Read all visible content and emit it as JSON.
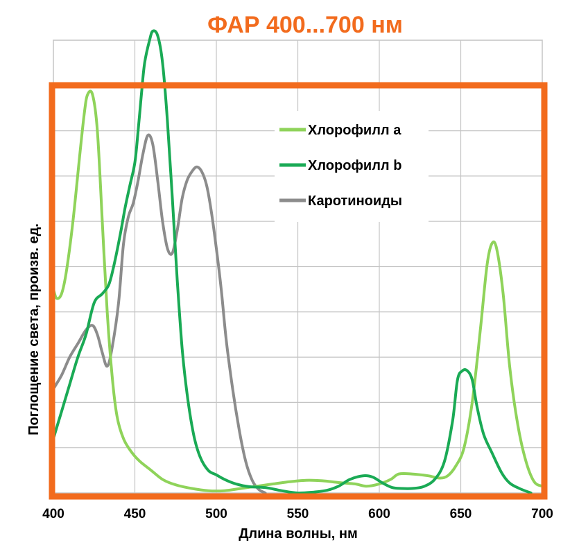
{
  "chart_data": {
    "type": "line",
    "title": "ФАР 400...700 нм",
    "xlabel": "Длина волны, нм",
    "ylabel": "Поглощение света, произв. ед.",
    "xlim": [
      400,
      700
    ],
    "ylim": [
      0,
      10
    ],
    "x_ticks": [
      "400",
      "450",
      "500",
      "550",
      "600",
      "650",
      "700"
    ],
    "grid": true,
    "legend_position": "top-center",
    "highlight_box_color": "#f26b1d",
    "title_color": "#f26b1d",
    "series": [
      {
        "name": "Хлорофилл а",
        "color": "#8fd35a",
        "points": [
          [
            400,
            4.5
          ],
          [
            402,
            4.3
          ],
          [
            405,
            4.4
          ],
          [
            408,
            4.9
          ],
          [
            412,
            6.0
          ],
          [
            416,
            7.4
          ],
          [
            419,
            8.4
          ],
          [
            421,
            8.8
          ],
          [
            424,
            8.8
          ],
          [
            427,
            8.0
          ],
          [
            430,
            6.0
          ],
          [
            433,
            4.0
          ],
          [
            436,
            2.6
          ],
          [
            439,
            1.7
          ],
          [
            443,
            1.2
          ],
          [
            448,
            0.9
          ],
          [
            453,
            0.7
          ],
          [
            460,
            0.5
          ],
          [
            467,
            0.3
          ],
          [
            475,
            0.18
          ],
          [
            485,
            0.1
          ],
          [
            495,
            0.05
          ],
          [
            505,
            0.05
          ],
          [
            515,
            0.1
          ],
          [
            525,
            0.15
          ],
          [
            535,
            0.2
          ],
          [
            545,
            0.25
          ],
          [
            555,
            0.28
          ],
          [
            565,
            0.27
          ],
          [
            575,
            0.23
          ],
          [
            585,
            0.2
          ],
          [
            592,
            0.15
          ],
          [
            600,
            0.2
          ],
          [
            607,
            0.3
          ],
          [
            612,
            0.42
          ],
          [
            620,
            0.42
          ],
          [
            630,
            0.38
          ],
          [
            637,
            0.33
          ],
          [
            642,
            0.38
          ],
          [
            647,
            0.6
          ],
          [
            652,
            1.0
          ],
          [
            657,
            2.0
          ],
          [
            662,
            3.6
          ],
          [
            666,
            5.0
          ],
          [
            669,
            5.5
          ],
          [
            672,
            5.4
          ],
          [
            676,
            4.4
          ],
          [
            680,
            2.8
          ],
          [
            685,
            1.5
          ],
          [
            690,
            0.7
          ],
          [
            695,
            0.25
          ],
          [
            700,
            0.15
          ]
        ]
      },
      {
        "name": "Хлорофилл b",
        "color": "#1aaa55",
        "points": [
          [
            400,
            1.2
          ],
          [
            405,
            1.8
          ],
          [
            410,
            2.4
          ],
          [
            415,
            3.0
          ],
          [
            420,
            3.5
          ],
          [
            425,
            4.2
          ],
          [
            430,
            4.4
          ],
          [
            434,
            4.6
          ],
          [
            437,
            5.0
          ],
          [
            441,
            5.7
          ],
          [
            444,
            6.3
          ],
          [
            447,
            6.8
          ],
          [
            450,
            7.3
          ],
          [
            452,
            8.0
          ],
          [
            454,
            8.8
          ],
          [
            456,
            9.5
          ],
          [
            459,
            10.0
          ],
          [
            461,
            10.2
          ],
          [
            464,
            10.1
          ],
          [
            467,
            9.5
          ],
          [
            470,
            8.2
          ],
          [
            473,
            6.5
          ],
          [
            476,
            4.7
          ],
          [
            479,
            3.2
          ],
          [
            482,
            2.2
          ],
          [
            486,
            1.3
          ],
          [
            490,
            0.8
          ],
          [
            495,
            0.5
          ],
          [
            500,
            0.4
          ],
          [
            505,
            0.3
          ],
          [
            512,
            0.2
          ],
          [
            520,
            0.14
          ],
          [
            530,
            0.12
          ],
          [
            540,
            0.05
          ],
          [
            550,
            0.0
          ],
          [
            560,
            0.02
          ],
          [
            568,
            0.06
          ],
          [
            575,
            0.15
          ],
          [
            582,
            0.3
          ],
          [
            590,
            0.38
          ],
          [
            596,
            0.35
          ],
          [
            602,
            0.22
          ],
          [
            608,
            0.12
          ],
          [
            614,
            0.1
          ],
          [
            620,
            0.1
          ],
          [
            627,
            0.14
          ],
          [
            634,
            0.3
          ],
          [
            640,
            0.7
          ],
          [
            645,
            1.6
          ],
          [
            648,
            2.5
          ],
          [
            651,
            2.7
          ],
          [
            654,
            2.7
          ],
          [
            657,
            2.5
          ],
          [
            660,
            1.9
          ],
          [
            664,
            1.3
          ],
          [
            669,
            0.9
          ],
          [
            675,
            0.45
          ],
          [
            680,
            0.22
          ],
          [
            686,
            0.1
          ],
          [
            693,
            0.0
          ]
        ]
      },
      {
        "name": "Каротиноиды",
        "color": "#8c8c8c",
        "points": [
          [
            400,
            2.3
          ],
          [
            405,
            2.6
          ],
          [
            410,
            3.0
          ],
          [
            415,
            3.3
          ],
          [
            420,
            3.6
          ],
          [
            424,
            3.7
          ],
          [
            427,
            3.5
          ],
          [
            430,
            3.1
          ],
          [
            433,
            2.8
          ],
          [
            436,
            3.2
          ],
          [
            440,
            4.2
          ],
          [
            443,
            5.5
          ],
          [
            446,
            6.1
          ],
          [
            449,
            6.4
          ],
          [
            452,
            6.9
          ],
          [
            455,
            7.5
          ],
          [
            458,
            7.9
          ],
          [
            461,
            7.7
          ],
          [
            464,
            6.9
          ],
          [
            467,
            6.0
          ],
          [
            470,
            5.4
          ],
          [
            473,
            5.3
          ],
          [
            476,
            5.8
          ],
          [
            479,
            6.5
          ],
          [
            482,
            6.9
          ],
          [
            485,
            7.1
          ],
          [
            488,
            7.2
          ],
          [
            491,
            7.1
          ],
          [
            494,
            6.8
          ],
          [
            497,
            6.2
          ],
          [
            500,
            5.4
          ],
          [
            503,
            4.5
          ],
          [
            506,
            3.4
          ],
          [
            510,
            2.3
          ],
          [
            514,
            1.4
          ],
          [
            518,
            0.7
          ],
          [
            522,
            0.28
          ],
          [
            526,
            0.08
          ],
          [
            530,
            0.0
          ]
        ]
      }
    ]
  }
}
